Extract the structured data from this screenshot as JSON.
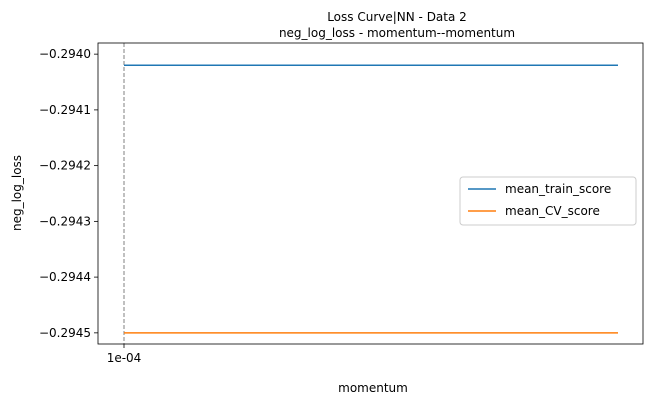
{
  "chart_data": {
    "type": "line",
    "title": "Loss Curve|NN - Data 2",
    "subtitle": "neg_log_loss - momentum--momentum",
    "xlabel": "momentum",
    "ylabel": "neg_log_loss",
    "x_tick_labels": [
      "1e-04"
    ],
    "y_ticks": [
      -0.294,
      -0.2941,
      -0.2942,
      -0.2943,
      -0.2944,
      -0.2945
    ],
    "y_tick_labels": [
      "−0.2940",
      "−0.2941",
      "−0.2942",
      "−0.2943",
      "−0.2944",
      "−0.2945"
    ],
    "ylim": [
      -0.29452,
      -0.29398
    ],
    "vertical_marker_at": "1e-04",
    "legend_position": "center-right",
    "grid": false,
    "series": [
      {
        "name": "mean_train_score",
        "color": "#1f77b4",
        "values": [
          -0.29402,
          -0.29402
        ]
      },
      {
        "name": "mean_CV_score",
        "color": "#ff7f0e",
        "values": [
          -0.2945,
          -0.2945
        ]
      }
    ]
  }
}
